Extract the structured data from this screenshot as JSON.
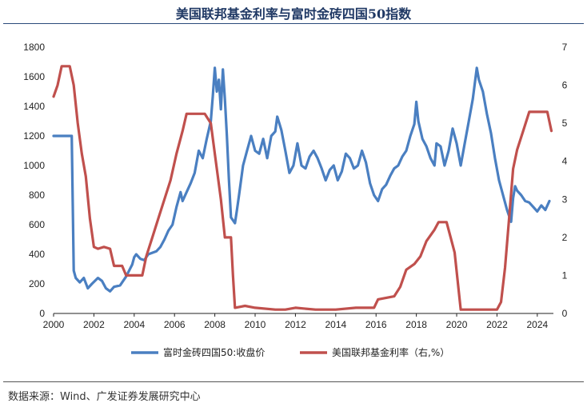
{
  "header": {
    "title": "美国联邦基金利率与富时金砖四国50指数"
  },
  "footer": {
    "source": "数据来源：Wind、广发证券发展研究中心"
  },
  "chart_data": {
    "type": "line",
    "title": "美国联邦基金利率与富时金砖四国50指数",
    "xlabel": "",
    "ylabel": "",
    "x_ticks": [
      "2000",
      "2002",
      "2004",
      "2006",
      "2008",
      "2010",
      "2012",
      "2014",
      "2016",
      "2018",
      "2020",
      "2022",
      "2024"
    ],
    "x_range": [
      2000,
      2024.8
    ],
    "left_axis": {
      "range": [
        0,
        1800
      ],
      "ticks": [
        0,
        200,
        400,
        600,
        800,
        1000,
        1200,
        1400,
        1600,
        1800
      ]
    },
    "right_axis": {
      "range": [
        0,
        7
      ],
      "ticks": [
        0,
        1,
        2,
        3,
        4,
        5,
        6,
        7
      ]
    },
    "grid": false,
    "legend_position": "bottom",
    "series": [
      {
        "name": "富时金砖四国50:收盘价",
        "axis": "left",
        "color": "#4a7fc1",
        "points": [
          [
            2000.0,
            1200
          ],
          [
            2000.9,
            1200
          ],
          [
            2001.0,
            290
          ],
          [
            2001.1,
            240
          ],
          [
            2001.3,
            210
          ],
          [
            2001.5,
            240
          ],
          [
            2001.7,
            170
          ],
          [
            2001.9,
            200
          ],
          [
            2002.2,
            240
          ],
          [
            2002.4,
            220
          ],
          [
            2002.6,
            170
          ],
          [
            2002.8,
            150
          ],
          [
            2003.0,
            180
          ],
          [
            2003.3,
            190
          ],
          [
            2003.6,
            250
          ],
          [
            2003.9,
            330
          ],
          [
            2004.0,
            380
          ],
          [
            2004.1,
            400
          ],
          [
            2004.3,
            370
          ],
          [
            2004.5,
            360
          ],
          [
            2004.7,
            400
          ],
          [
            2004.9,
            410
          ],
          [
            2005.1,
            420
          ],
          [
            2005.3,
            450
          ],
          [
            2005.5,
            500
          ],
          [
            2005.7,
            560
          ],
          [
            2005.9,
            600
          ],
          [
            2006.1,
            720
          ],
          [
            2006.3,
            820
          ],
          [
            2006.4,
            760
          ],
          [
            2006.6,
            820
          ],
          [
            2006.8,
            880
          ],
          [
            2007.0,
            950
          ],
          [
            2007.2,
            1100
          ],
          [
            2007.4,
            1050
          ],
          [
            2007.6,
            1180
          ],
          [
            2007.8,
            1300
          ],
          [
            2007.9,
            1470
          ],
          [
            2008.0,
            1660
          ],
          [
            2008.1,
            1500
          ],
          [
            2008.2,
            1580
          ],
          [
            2008.3,
            1380
          ],
          [
            2008.4,
            1650
          ],
          [
            2008.5,
            1450
          ],
          [
            2008.6,
            1200
          ],
          [
            2008.7,
            900
          ],
          [
            2008.8,
            650
          ],
          [
            2009.0,
            610
          ],
          [
            2009.1,
            700
          ],
          [
            2009.2,
            800
          ],
          [
            2009.4,
            1000
          ],
          [
            2009.6,
            1100
          ],
          [
            2009.8,
            1200
          ],
          [
            2010.0,
            1100
          ],
          [
            2010.2,
            1080
          ],
          [
            2010.4,
            1180
          ],
          [
            2010.6,
            1050
          ],
          [
            2010.8,
            1200
          ],
          [
            2011.0,
            1230
          ],
          [
            2011.1,
            1330
          ],
          [
            2011.3,
            1240
          ],
          [
            2011.5,
            1100
          ],
          [
            2011.7,
            950
          ],
          [
            2011.9,
            1000
          ],
          [
            2012.1,
            1150
          ],
          [
            2012.3,
            1000
          ],
          [
            2012.5,
            980
          ],
          [
            2012.7,
            1060
          ],
          [
            2012.9,
            1100
          ],
          [
            2013.1,
            1050
          ],
          [
            2013.3,
            980
          ],
          [
            2013.5,
            900
          ],
          [
            2013.7,
            970
          ],
          [
            2013.9,
            1000
          ],
          [
            2014.1,
            900
          ],
          [
            2014.3,
            960
          ],
          [
            2014.5,
            1080
          ],
          [
            2014.7,
            1050
          ],
          [
            2014.9,
            980
          ],
          [
            2015.1,
            1000
          ],
          [
            2015.3,
            1100
          ],
          [
            2015.5,
            1020
          ],
          [
            2015.7,
            880
          ],
          [
            2015.9,
            800
          ],
          [
            2016.1,
            760
          ],
          [
            2016.3,
            840
          ],
          [
            2016.5,
            870
          ],
          [
            2016.7,
            930
          ],
          [
            2016.9,
            980
          ],
          [
            2017.1,
            1000
          ],
          [
            2017.3,
            1060
          ],
          [
            2017.5,
            1100
          ],
          [
            2017.7,
            1200
          ],
          [
            2017.9,
            1280
          ],
          [
            2018.0,
            1430
          ],
          [
            2018.1,
            1300
          ],
          [
            2018.3,
            1180
          ],
          [
            2018.5,
            1130
          ],
          [
            2018.7,
            1050
          ],
          [
            2018.9,
            1000
          ],
          [
            2019.0,
            1150
          ],
          [
            2019.2,
            1130
          ],
          [
            2019.4,
            1000
          ],
          [
            2019.6,
            1100
          ],
          [
            2019.8,
            1250
          ],
          [
            2020.0,
            1150
          ],
          [
            2020.2,
            1000
          ],
          [
            2020.4,
            1150
          ],
          [
            2020.6,
            1300
          ],
          [
            2020.8,
            1450
          ],
          [
            2021.0,
            1660
          ],
          [
            2021.1,
            1580
          ],
          [
            2021.3,
            1500
          ],
          [
            2021.5,
            1350
          ],
          [
            2021.7,
            1220
          ],
          [
            2021.9,
            1050
          ],
          [
            2022.1,
            900
          ],
          [
            2022.3,
            800
          ],
          [
            2022.5,
            700
          ],
          [
            2022.7,
            620
          ],
          [
            2022.8,
            780
          ],
          [
            2022.9,
            860
          ],
          [
            2023.0,
            830
          ],
          [
            2023.2,
            800
          ],
          [
            2023.4,
            760
          ],
          [
            2023.6,
            750
          ],
          [
            2023.8,
            720
          ],
          [
            2024.0,
            690
          ],
          [
            2024.2,
            730
          ],
          [
            2024.4,
            700
          ],
          [
            2024.6,
            760
          ]
        ]
      },
      {
        "name": "美国联邦基金利率（右,%）",
        "axis": "right",
        "color": "#c0504d",
        "points": [
          [
            2000.0,
            5.7
          ],
          [
            2000.2,
            6.0
          ],
          [
            2000.4,
            6.5
          ],
          [
            2000.6,
            6.5
          ],
          [
            2000.8,
            6.5
          ],
          [
            2001.0,
            6.0
          ],
          [
            2001.2,
            5.0
          ],
          [
            2001.4,
            4.2
          ],
          [
            2001.6,
            3.6
          ],
          [
            2001.8,
            2.5
          ],
          [
            2002.0,
            1.75
          ],
          [
            2002.2,
            1.7
          ],
          [
            2002.5,
            1.75
          ],
          [
            2002.8,
            1.7
          ],
          [
            2003.0,
            1.25
          ],
          [
            2003.4,
            1.25
          ],
          [
            2003.6,
            1.0
          ],
          [
            2004.0,
            1.0
          ],
          [
            2004.4,
            1.0
          ],
          [
            2004.6,
            1.5
          ],
          [
            2004.9,
            2.0
          ],
          [
            2005.2,
            2.5
          ],
          [
            2005.5,
            3.0
          ],
          [
            2005.8,
            3.5
          ],
          [
            2006.1,
            4.2
          ],
          [
            2006.4,
            4.8
          ],
          [
            2006.6,
            5.25
          ],
          [
            2007.0,
            5.25
          ],
          [
            2007.5,
            5.25
          ],
          [
            2007.8,
            5.0
          ],
          [
            2008.0,
            4.2
          ],
          [
            2008.3,
            3.0
          ],
          [
            2008.5,
            2.0
          ],
          [
            2008.8,
            2.0
          ],
          [
            2008.9,
            1.0
          ],
          [
            2009.0,
            0.15
          ],
          [
            2009.5,
            0.2
          ],
          [
            2010.0,
            0.15
          ],
          [
            2011.0,
            0.1
          ],
          [
            2011.5,
            0.1
          ],
          [
            2012.0,
            0.15
          ],
          [
            2013.0,
            0.1
          ],
          [
            2014.0,
            0.1
          ],
          [
            2015.0,
            0.15
          ],
          [
            2015.9,
            0.15
          ],
          [
            2016.1,
            0.37
          ],
          [
            2016.9,
            0.45
          ],
          [
            2017.2,
            0.7
          ],
          [
            2017.5,
            1.15
          ],
          [
            2017.9,
            1.3
          ],
          [
            2018.2,
            1.5
          ],
          [
            2018.5,
            1.9
          ],
          [
            2018.9,
            2.2
          ],
          [
            2019.1,
            2.4
          ],
          [
            2019.5,
            2.4
          ],
          [
            2019.7,
            2.0
          ],
          [
            2019.9,
            1.6
          ],
          [
            2020.2,
            0.1
          ],
          [
            2021.0,
            0.1
          ],
          [
            2022.0,
            0.1
          ],
          [
            2022.2,
            0.3
          ],
          [
            2022.4,
            1.2
          ],
          [
            2022.6,
            2.5
          ],
          [
            2022.8,
            3.8
          ],
          [
            2023.0,
            4.3
          ],
          [
            2023.3,
            4.8
          ],
          [
            2023.6,
            5.3
          ],
          [
            2024.0,
            5.3
          ],
          [
            2024.5,
            5.3
          ],
          [
            2024.7,
            4.8
          ]
        ]
      }
    ]
  }
}
